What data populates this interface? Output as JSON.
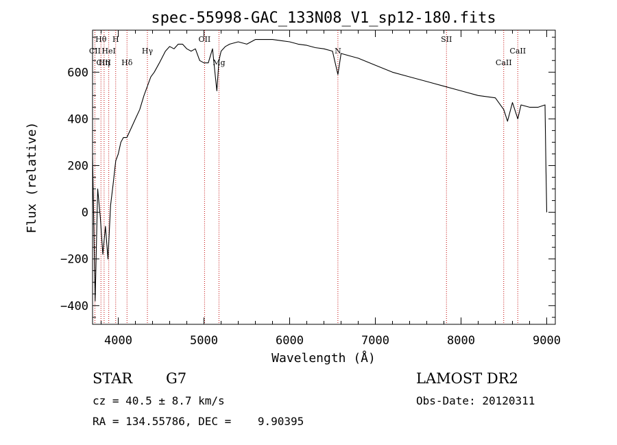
{
  "chart_data": {
    "type": "line",
    "title": "spec-55998-GAC_133N08_V1_sp12-180.fits",
    "xlabel": "Wavelength (Å)",
    "ylabel": "Flux (relative)",
    "xlim": [
      3700,
      9100
    ],
    "ylim": [
      -480,
      780
    ],
    "xticks": [
      4000,
      5000,
      6000,
      7000,
      8000,
      9000
    ],
    "yticks": [
      -400,
      -200,
      0,
      200,
      400,
      600
    ],
    "series": [
      {
        "name": "flux",
        "x": [
          3700,
          3730,
          3760,
          3790,
          3820,
          3850,
          3880,
          3910,
          3940,
          3970,
          4000,
          4030,
          4060,
          4100,
          4150,
          4200,
          4250,
          4300,
          4340,
          4380,
          4420,
          4480,
          4550,
          4600,
          4650,
          4700,
          4750,
          4800,
          4850,
          4900,
          4950,
          5000,
          5050,
          5100,
          5150,
          5175,
          5200,
          5250,
          5300,
          5400,
          5500,
          5600,
          5700,
          5800,
          5900,
          6000,
          6100,
          6200,
          6300,
          6400,
          6500,
          6563,
          6600,
          6700,
          6800,
          7000,
          7200,
          7400,
          7600,
          7800,
          8000,
          8200,
          8400,
          8498,
          8542,
          8600,
          8662,
          8700,
          8800,
          8900,
          8980,
          8990,
          9000
        ],
        "y": [
          250,
          -380,
          100,
          -20,
          -180,
          -60,
          -200,
          30,
          120,
          220,
          250,
          300,
          320,
          320,
          360,
          400,
          440,
          500,
          540,
          580,
          600,
          640,
          690,
          710,
          700,
          720,
          720,
          700,
          690,
          700,
          650,
          640,
          640,
          700,
          520,
          650,
          690,
          710,
          720,
          730,
          720,
          740,
          740,
          740,
          735,
          730,
          720,
          715,
          705,
          700,
          690,
          590,
          680,
          670,
          660,
          630,
          600,
          580,
          560,
          540,
          520,
          500,
          490,
          440,
          390,
          470,
          400,
          460,
          450,
          450,
          460,
          200,
          0
        ]
      }
    ],
    "spectral_lines": [
      {
        "label": "Hθ",
        "x": 3798,
        "row": 1
      },
      {
        "label": "H",
        "x": 3970,
        "row": 1
      },
      {
        "label": "OII",
        "x": 5007,
        "row": 1
      },
      {
        "label": "SII",
        "x": 7830,
        "row": 1
      },
      {
        "label": "CII",
        "x": 3727,
        "row": 2
      },
      {
        "label": "HeI",
        "x": 3889,
        "row": 2
      },
      {
        "label": "Hγ",
        "x": 4340,
        "row": 2
      },
      {
        "label": "CaII",
        "x": 8662,
        "row": 2
      },
      {
        "label": "CIII",
        "x": 3830,
        "row": 3
      },
      {
        "label": "Hη",
        "x": 3835,
        "row": 3
      },
      {
        "label": "Hδ",
        "x": 4102,
        "row": 3
      },
      {
        "label": "CaII",
        "x": 8498,
        "row": 3
      },
      {
        "label": "Mg",
        "x": 5175,
        "row": 3
      },
      {
        "label": "N",
        "x": 6563,
        "row": 2
      }
    ],
    "line_markers": [
      3727,
      3798,
      3835,
      3889,
      3970,
      4102,
      4340,
      5007,
      5175,
      6563,
      7830,
      8498,
      8662
    ]
  },
  "info": {
    "object_class": "STAR",
    "subclass": "G7",
    "cz": "cz = 40.5 ± 8.7 km/s",
    "coords": "RA = 134.55786, DEC =    9.90395",
    "survey": "LAMOST DR2",
    "obs_date": "Obs-Date: 20120311"
  }
}
